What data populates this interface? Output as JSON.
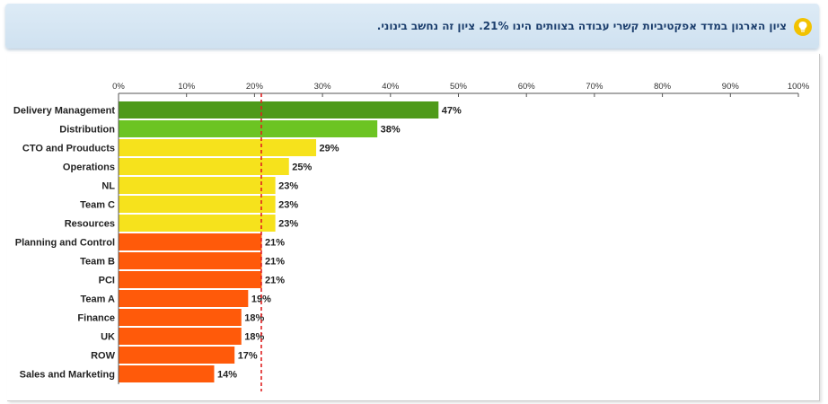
{
  "banner": {
    "text": "ציון הארגון במדד אפקטיביות קשרי עבודה בצוותים הינו 21%. ציון זה נחשב בינוני.",
    "icon": "lightbulb-icon",
    "icon_color": "#f2c200"
  },
  "chart_data": {
    "type": "bar",
    "orientation": "horizontal",
    "categories": [
      "Delivery Management",
      "Distribution",
      "CTO and Prouducts",
      "Operations",
      "NL",
      "Team C",
      "Resources",
      "Planning and Control",
      "Team B",
      "PCI",
      "Team A",
      "Finance",
      "UK",
      "ROW",
      "Sales and Marketing"
    ],
    "values": [
      47,
      38,
      29,
      25,
      23,
      23,
      23,
      21,
      21,
      21,
      19,
      18,
      18,
      17,
      14
    ],
    "value_labels": [
      "47%",
      "38%",
      "29%",
      "25%",
      "23%",
      "23%",
      "23%",
      "21%",
      "21%",
      "21%",
      "19%",
      "18%",
      "18%",
      "17%",
      "14%"
    ],
    "bar_colors": [
      "#4e9a1a",
      "#6cc423",
      "#f6e21c",
      "#f6e21c",
      "#f6e21c",
      "#f6e21c",
      "#f6e21c",
      "#ff5a0a",
      "#ff5a0a",
      "#ff5a0a",
      "#ff5a0a",
      "#ff5a0a",
      "#ff5a0a",
      "#ff5a0a",
      "#ff5a0a"
    ],
    "xlim": [
      0,
      100
    ],
    "xticks": [
      0,
      10,
      20,
      30,
      40,
      50,
      60,
      70,
      80,
      90,
      100
    ],
    "xtick_labels": [
      "0%",
      "10%",
      "20%",
      "30%",
      "40%",
      "50%",
      "60%",
      "70%",
      "80%",
      "90%",
      "100%"
    ],
    "x_axis_position": "top",
    "reference_line": {
      "value": 21,
      "color": "#e02020",
      "style": "dashed"
    },
    "grid": false,
    "legend": "none",
    "title": "",
    "xlabel": "",
    "ylabel": ""
  }
}
